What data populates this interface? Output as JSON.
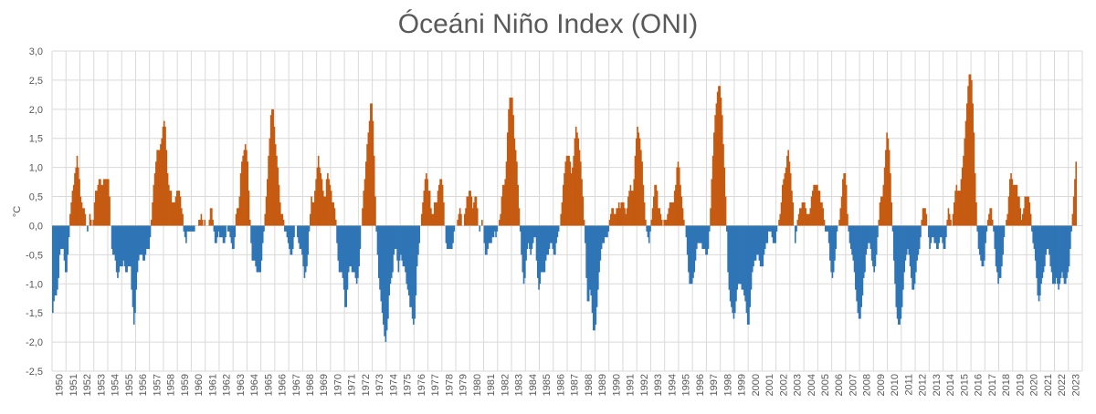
{
  "chart_data": {
    "type": "bar",
    "title": "Óceáni Niño Index (ONI)",
    "ylabel": "°C",
    "xlabel": "",
    "ylim": [
      -2.5,
      3.0
    ],
    "ytick_step": 0.5,
    "decimal_separator": ",",
    "grid": true,
    "legend": "none",
    "colors": {
      "positive": "#C55A11",
      "negative": "#2E75B6",
      "grid": "#D9D9D9",
      "text": "#595959"
    },
    "x_tick_labels": [
      "1950",
      "1951",
      "1952",
      "1953",
      "1954",
      "1955",
      "1956",
      "1957",
      "1958",
      "1959",
      "1960",
      "1961",
      "1962",
      "1963",
      "1964",
      "1965",
      "1966",
      "1967",
      "1968",
      "1969",
      "1970",
      "1971",
      "1972",
      "1973",
      "1974",
      "1975",
      "1976",
      "1977",
      "1978",
      "1979",
      "1980",
      "1981",
      "1982",
      "1983",
      "1984",
      "1985",
      "1986",
      "1987",
      "1988",
      "1989",
      "1990",
      "1991",
      "1992",
      "1993",
      "1994",
      "1995",
      "1996",
      "1997",
      "1998",
      "1999",
      "2000",
      "2001",
      "2002",
      "2003",
      "2004",
      "2005",
      "2006",
      "2007",
      "2008",
      "2009",
      "2010",
      "2011",
      "2012",
      "2013",
      "2014",
      "2015",
      "2016",
      "2017",
      "2018",
      "2019",
      "2020",
      "2021",
      "2022",
      "2023"
    ],
    "frequency": "monthly (3-month running mean)",
    "series": [
      {
        "values_by_year": {
          "1950": [
            -1.5,
            -1.3,
            -1.2,
            -1.2,
            -1.1,
            -0.9,
            -0.5,
            -0.4,
            -0.4,
            -0.4,
            -0.6,
            -0.8
          ],
          "1951": [
            -0.8,
            -0.5,
            -0.2,
            0.2,
            0.4,
            0.6,
            0.7,
            0.9,
            1.0,
            1.2,
            1.0,
            0.8
          ],
          "1952": [
            0.5,
            0.4,
            0.3,
            0.3,
            0.2,
            0.0,
            -0.1,
            0.0,
            0.2,
            0.1,
            0.0,
            0.1
          ],
          "1953": [
            0.4,
            0.6,
            0.6,
            0.7,
            0.8,
            0.8,
            0.7,
            0.7,
            0.8,
            0.8,
            0.8,
            0.8
          ],
          "1954": [
            0.8,
            0.5,
            0.0,
            -0.4,
            -0.5,
            -0.5,
            -0.6,
            -0.8,
            -0.9,
            -0.8,
            -0.7,
            -0.7
          ],
          "1955": [
            -0.7,
            -0.6,
            -0.7,
            -0.8,
            -0.8,
            -0.7,
            -0.7,
            -0.7,
            -1.1,
            -1.4,
            -1.7,
            -1.5
          ],
          "1956": [
            -1.1,
            -0.8,
            -0.6,
            -0.5,
            -0.5,
            -0.5,
            -0.6,
            -0.6,
            -0.5,
            -0.4,
            -0.4,
            -0.4
          ],
          "1957": [
            -0.2,
            0.1,
            0.4,
            0.7,
            0.9,
            1.1,
            1.3,
            1.3,
            1.3,
            1.4,
            1.5,
            1.7
          ],
          "1958": [
            1.8,
            1.7,
            1.3,
            0.9,
            0.7,
            0.6,
            0.6,
            0.4,
            0.4,
            0.4,
            0.5,
            0.6
          ],
          "1959": [
            0.6,
            0.6,
            0.5,
            0.3,
            0.2,
            -0.1,
            -0.2,
            -0.3,
            -0.1,
            -0.1,
            -0.1,
            -0.1
          ],
          "1960": [
            -0.1,
            -0.1,
            -0.1,
            0.0,
            0.0,
            0.0,
            0.1,
            0.1,
            0.2,
            0.1,
            0.0,
            0.1
          ],
          "1961": [
            0.0,
            0.0,
            0.0,
            0.1,
            0.3,
            0.3,
            0.1,
            -0.1,
            -0.3,
            -0.3,
            -0.2,
            -0.1
          ],
          "1962": [
            -0.2,
            -0.2,
            -0.2,
            -0.3,
            -0.3,
            -0.2,
            0.0,
            -0.1,
            -0.1,
            -0.2,
            -0.3,
            -0.4
          ],
          "1963": [
            -0.4,
            -0.2,
            0.2,
            0.3,
            0.3,
            0.5,
            0.9,
            1.1,
            1.2,
            1.3,
            1.4,
            1.3
          ],
          "1964": [
            1.1,
            0.6,
            0.1,
            -0.3,
            -0.6,
            -0.6,
            -0.6,
            -0.7,
            -0.8,
            -0.8,
            -0.8,
            -0.8
          ],
          "1965": [
            -0.6,
            -0.3,
            -0.1,
            0.2,
            0.5,
            0.8,
            1.2,
            1.5,
            1.9,
            2.0,
            2.0,
            1.7
          ],
          "1966": [
            1.4,
            1.2,
            1.0,
            0.7,
            0.4,
            0.2,
            0.2,
            0.1,
            -0.1,
            -0.1,
            -0.2,
            -0.3
          ],
          "1967": [
            -0.4,
            -0.5,
            -0.5,
            -0.4,
            -0.2,
            0.0,
            0.0,
            -0.2,
            -0.3,
            -0.4,
            -0.4,
            -0.5
          ],
          "1968": [
            -0.7,
            -0.9,
            -0.8,
            -0.7,
            -0.5,
            -0.1,
            0.2,
            0.5,
            0.4,
            0.4,
            0.6,
            0.8
          ],
          "1969": [
            1.0,
            1.2,
            1.0,
            0.9,
            0.8,
            0.6,
            0.5,
            0.5,
            0.8,
            0.9,
            0.8,
            0.7
          ],
          "1970": [
            0.6,
            0.4,
            0.4,
            0.3,
            0.1,
            -0.3,
            -0.6,
            -0.8,
            -0.8,
            -0.8,
            -0.9,
            -1.1
          ],
          "1971": [
            -1.4,
            -1.4,
            -1.1,
            -0.8,
            -0.7,
            -0.7,
            -0.8,
            -0.8,
            -0.8,
            -0.9,
            -1.0,
            -0.9
          ],
          "1972": [
            -0.7,
            -0.4,
            0.0,
            0.3,
            0.6,
            0.8,
            1.1,
            1.4,
            1.6,
            1.8,
            2.1,
            2.1
          ],
          "1973": [
            1.8,
            1.2,
            0.5,
            -0.1,
            -0.5,
            -0.9,
            -1.1,
            -1.3,
            -1.5,
            -1.7,
            -1.9,
            -2.0
          ],
          "1974": [
            -1.8,
            -1.6,
            -1.2,
            -1.0,
            -0.9,
            -0.8,
            -0.5,
            -0.4,
            -0.4,
            -0.6,
            -0.8,
            -0.6
          ],
          "1975": [
            -0.5,
            -0.6,
            -0.7,
            -0.7,
            -0.8,
            -1.0,
            -1.1,
            -1.2,
            -1.4,
            -1.4,
            -1.6,
            -1.7
          ],
          "1976": [
            -1.6,
            -1.2,
            -0.7,
            -0.5,
            -0.3,
            0.0,
            0.2,
            0.4,
            0.6,
            0.8,
            0.9,
            0.8
          ],
          "1977": [
            0.6,
            0.6,
            0.3,
            0.2,
            0.2,
            0.4,
            0.4,
            0.4,
            0.6,
            0.7,
            0.8,
            0.8
          ],
          "1978": [
            0.7,
            0.4,
            0.0,
            -0.3,
            -0.4,
            -0.4,
            -0.4,
            -0.4,
            -0.4,
            -0.3,
            -0.1,
            0.0
          ],
          "1979": [
            0.0,
            0.1,
            0.2,
            0.3,
            0.2,
            0.0,
            0.0,
            0.2,
            0.3,
            0.5,
            0.5,
            0.6
          ],
          "1980": [
            0.6,
            0.5,
            0.3,
            0.4,
            0.5,
            0.5,
            0.3,
            0.0,
            -0.1,
            0.0,
            0.1,
            0.0
          ],
          "1981": [
            -0.3,
            -0.5,
            -0.5,
            -0.4,
            -0.3,
            -0.3,
            -0.3,
            -0.2,
            -0.2,
            -0.1,
            -0.2,
            -0.1
          ],
          "1982": [
            0.0,
            0.1,
            0.2,
            0.5,
            0.7,
            0.7,
            0.8,
            1.1,
            1.6,
            2.0,
            2.2,
            2.2
          ],
          "1983": [
            2.2,
            1.9,
            1.5,
            1.3,
            1.1,
            0.7,
            0.3,
            -0.1,
            -0.5,
            -0.8,
            -1.0,
            -0.9
          ],
          "1984": [
            -0.6,
            -0.4,
            -0.3,
            -0.4,
            -0.5,
            -0.4,
            -0.3,
            -0.2,
            -0.2,
            -0.6,
            -0.9,
            -1.1
          ],
          "1985": [
            -1.0,
            -0.8,
            -0.8,
            -0.8,
            -0.8,
            -0.6,
            -0.5,
            -0.5,
            -0.4,
            -0.3,
            -0.3,
            -0.4
          ],
          "1986": [
            -0.5,
            -0.5,
            -0.3,
            -0.2,
            -0.1,
            0.0,
            0.2,
            0.4,
            0.7,
            0.9,
            1.1,
            1.2
          ],
          "1987": [
            1.2,
            1.2,
            1.1,
            0.9,
            1.0,
            1.2,
            1.5,
            1.7,
            1.6,
            1.5,
            1.3,
            1.1
          ],
          "1988": [
            0.8,
            0.5,
            0.1,
            -0.3,
            -0.9,
            -1.3,
            -1.3,
            -1.1,
            -1.2,
            -1.5,
            -1.8,
            -1.8
          ],
          "1989": [
            -1.7,
            -1.4,
            -1.1,
            -0.8,
            -0.6,
            -0.4,
            -0.3,
            -0.3,
            -0.2,
            -0.2,
            -0.2,
            -0.1
          ],
          "1990": [
            0.1,
            0.2,
            0.3,
            0.3,
            0.2,
            0.2,
            0.3,
            0.3,
            0.4,
            0.3,
            0.4,
            0.4
          ],
          "1991": [
            0.4,
            0.3,
            0.2,
            0.3,
            0.5,
            0.6,
            0.7,
            0.6,
            0.6,
            0.8,
            1.2,
            1.5
          ],
          "1992": [
            1.7,
            1.6,
            1.5,
            1.3,
            1.1,
            0.7,
            0.4,
            0.1,
            -0.1,
            -0.2,
            -0.3,
            -0.1
          ],
          "1993": [
            0.1,
            0.3,
            0.5,
            0.7,
            0.7,
            0.6,
            0.3,
            0.3,
            0.2,
            0.1,
            0.0,
            0.1
          ],
          "1994": [
            0.1,
            0.1,
            0.2,
            0.3,
            0.4,
            0.4,
            0.4,
            0.4,
            0.6,
            0.7,
            1.0,
            1.1
          ],
          "1995": [
            1.0,
            0.7,
            0.5,
            0.3,
            0.1,
            0.0,
            -0.2,
            -0.5,
            -0.8,
            -1.0,
            -1.0,
            -1.0
          ],
          "1996": [
            -0.9,
            -0.8,
            -0.6,
            -0.4,
            -0.3,
            -0.3,
            -0.3,
            -0.3,
            -0.4,
            -0.4,
            -0.4,
            -0.5
          ],
          "1997": [
            -0.5,
            -0.4,
            -0.1,
            0.3,
            0.8,
            1.2,
            1.6,
            1.9,
            2.1,
            2.3,
            2.4,
            2.4
          ],
          "1998": [
            2.2,
            1.9,
            1.4,
            1.0,
            0.5,
            -0.1,
            -0.8,
            -1.1,
            -1.3,
            -1.4,
            -1.5,
            -1.6
          ],
          "1999": [
            -1.5,
            -1.3,
            -1.1,
            -1.0,
            -1.0,
            -1.0,
            -1.1,
            -1.1,
            -1.2,
            -1.3,
            -1.5,
            -1.7
          ],
          "2000": [
            -1.7,
            -1.4,
            -1.1,
            -0.8,
            -0.7,
            -0.6,
            -0.6,
            -0.5,
            -0.5,
            -0.6,
            -0.7,
            -0.7
          ],
          "2001": [
            -0.7,
            -0.5,
            -0.4,
            -0.3,
            -0.3,
            -0.1,
            -0.1,
            -0.1,
            -0.2,
            -0.3,
            -0.3,
            -0.3
          ],
          "2002": [
            -0.1,
            0.0,
            0.1,
            0.2,
            0.4,
            0.7,
            0.8,
            0.9,
            1.0,
            1.2,
            1.3,
            1.1
          ],
          "2003": [
            0.9,
            0.6,
            0.4,
            0.0,
            -0.3,
            -0.1,
            0.1,
            0.2,
            0.3,
            0.3,
            0.4,
            0.4
          ],
          "2004": [
            0.4,
            0.3,
            0.2,
            0.2,
            0.2,
            0.3,
            0.5,
            0.6,
            0.7,
            0.7,
            0.7,
            0.7
          ],
          "2005": [
            0.6,
            0.6,
            0.4,
            0.4,
            0.3,
            0.1,
            -0.1,
            -0.1,
            -0.1,
            -0.3,
            -0.6,
            -0.8
          ],
          "2006": [
            -0.9,
            -0.8,
            -0.6,
            -0.4,
            -0.1,
            0.0,
            0.1,
            0.3,
            0.5,
            0.8,
            0.9,
            0.9
          ],
          "2007": [
            0.7,
            0.2,
            -0.1,
            -0.3,
            -0.4,
            -0.5,
            -0.6,
            -0.8,
            -1.1,
            -1.3,
            -1.5,
            -1.6
          ],
          "2008": [
            -1.6,
            -1.4,
            -1.2,
            -0.9,
            -0.8,
            -0.5,
            -0.4,
            -0.3,
            -0.3,
            -0.4,
            -0.6,
            -0.7
          ],
          "2009": [
            -0.8,
            -0.7,
            -0.5,
            -0.2,
            0.1,
            0.4,
            0.5,
            0.5,
            0.7,
            1.0,
            1.3,
            1.6
          ],
          "2010": [
            1.5,
            1.3,
            0.9,
            0.4,
            -0.1,
            -0.6,
            -1.0,
            -1.4,
            -1.6,
            -1.7,
            -1.7,
            -1.6
          ],
          "2011": [
            -1.4,
            -1.1,
            -0.8,
            -0.6,
            -0.5,
            -0.4,
            -0.5,
            -0.7,
            -0.9,
            -1.1,
            -1.1,
            -1.0
          ],
          "2012": [
            -0.8,
            -0.6,
            -0.5,
            -0.4,
            -0.2,
            0.1,
            0.3,
            0.3,
            0.3,
            0.2,
            0.0,
            -0.2
          ],
          "2013": [
            -0.4,
            -0.3,
            -0.2,
            -0.2,
            -0.3,
            -0.3,
            -0.4,
            -0.4,
            -0.3,
            -0.2,
            -0.2,
            -0.3
          ],
          "2014": [
            -0.4,
            -0.4,
            -0.2,
            0.1,
            0.3,
            0.2,
            0.1,
            0.0,
            0.2,
            0.4,
            0.6,
            0.7
          ],
          "2015": [
            0.6,
            0.6,
            0.6,
            0.8,
            1.0,
            1.2,
            1.5,
            1.8,
            2.1,
            2.4,
            2.6,
            2.6
          ],
          "2016": [
            2.5,
            2.1,
            1.6,
            0.9,
            0.4,
            -0.1,
            -0.4,
            -0.5,
            -0.6,
            -0.7,
            -0.7,
            -0.6
          ],
          "2017": [
            -0.3,
            -0.1,
            0.1,
            0.2,
            0.3,
            0.3,
            0.1,
            -0.1,
            -0.4,
            -0.7,
            -0.8,
            -1.0
          ],
          "2018": [
            -0.9,
            -0.9,
            -0.7,
            -0.5,
            -0.2,
            0.0,
            0.1,
            0.2,
            0.5,
            0.8,
            0.9,
            0.8
          ],
          "2019": [
            0.7,
            0.7,
            0.7,
            0.7,
            0.5,
            0.5,
            0.3,
            0.1,
            0.2,
            0.3,
            0.5,
            0.5
          ],
          "2020": [
            0.5,
            0.5,
            0.4,
            0.2,
            -0.1,
            -0.3,
            -0.4,
            -0.6,
            -0.9,
            -1.2,
            -1.3,
            -1.2
          ],
          "2021": [
            -1.0,
            -0.9,
            -0.8,
            -0.7,
            -0.5,
            -0.4,
            -0.4,
            -0.5,
            -0.7,
            -0.8,
            -1.0,
            -1.0
          ],
          "2022": [
            -1.0,
            -0.9,
            -1.0,
            -1.1,
            -1.0,
            -0.9,
            -0.8,
            -0.9,
            -1.0,
            -1.0,
            -0.9,
            -0.8
          ],
          "2023": [
            -0.7,
            -0.4,
            -0.1,
            0.2,
            0.5,
            0.8,
            1.1
          ]
        }
      }
    ]
  }
}
